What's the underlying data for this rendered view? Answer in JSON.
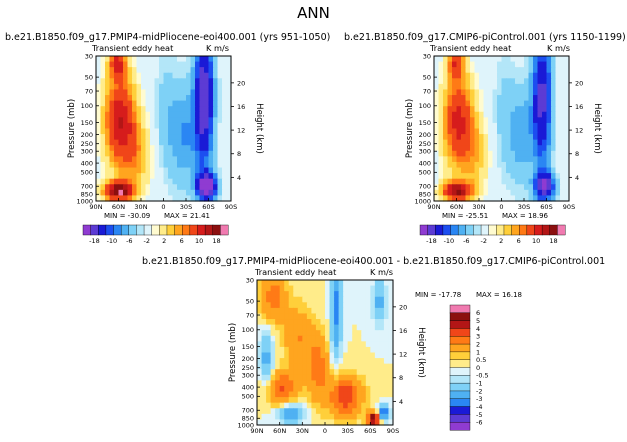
{
  "page_title": "ANN",
  "colors": {
    "ramp": [
      "#8f3bd1",
      "#5c3bd4",
      "#1a1ad6",
      "#1c4ef0",
      "#2a86f3",
      "#4fb1f2",
      "#7ed1f6",
      "#b3e6f8",
      "#dff4fb",
      "#fffbd0",
      "#ffec8a",
      "#ffcf3a",
      "#ffa51f",
      "#ff7a16",
      "#f04619",
      "#d61c1c",
      "#b31616",
      "#8b0f0f",
      "#f07ab0"
    ]
  },
  "chart_data": [
    {
      "type": "heatmap",
      "title": "b.e21.B1850.f09_g17.PMIP4-midPliocene-eoi400.001 (yrs 951-1050)",
      "subtitle_left": "Transient eddy heat",
      "units": "K m/s",
      "xlabel": "",
      "ylabel": "Pressure (mb)",
      "ylabel_right": "Height (km)",
      "x_ticks": [
        "90N",
        "60N",
        "30N",
        "0",
        "30S",
        "60S",
        "90S"
      ],
      "y_ticks": [
        "30",
        "50",
        "70",
        "100",
        "150",
        "200",
        "250",
        "300",
        "400",
        "500",
        "700",
        "850",
        "1000"
      ],
      "y_ticks_right": [
        "20",
        "16",
        "12",
        "8",
        "4"
      ],
      "stats": {
        "min_label": "MIN = -30.09",
        "max_label": "MAX = 21.41"
      },
      "colorbar": {
        "orientation": "horizontal",
        "labels": [
          "-18",
          "-10",
          "-6",
          "-2",
          "2",
          "6",
          "10",
          "18"
        ]
      }
    },
    {
      "type": "heatmap",
      "title": "b.e21.B1850.f09_g17.CMIP6-piControl.001 (yrs 1150-1199)",
      "subtitle_left": "Transient eddy heat",
      "units": "K m/s",
      "xlabel": "",
      "ylabel": "Pressure (mb)",
      "ylabel_right": "Height (km)",
      "x_ticks": [
        "90N",
        "60N",
        "30N",
        "0",
        "30S",
        "60S",
        "90S"
      ],
      "y_ticks": [
        "30",
        "50",
        "70",
        "100",
        "150",
        "200",
        "250",
        "300",
        "400",
        "500",
        "700",
        "850",
        "1000"
      ],
      "y_ticks_right": [
        "20",
        "16",
        "12",
        "8",
        "4"
      ],
      "stats": {
        "min_label": "MIN = -25.51",
        "max_label": "MAX = 18.96"
      },
      "colorbar": {
        "orientation": "horizontal",
        "labels": [
          "-18",
          "-10",
          "-6",
          "-2",
          "2",
          "6",
          "10",
          "18"
        ]
      }
    },
    {
      "type": "heatmap",
      "title": "b.e21.B1850.f09_g17.PMIP4-midPliocene-eoi400.001 - b.e21.B1850.f09_g17.CMIP6-piControl.001",
      "subtitle_left": "Transient eddy heat",
      "units": "K m/s",
      "xlabel": "",
      "ylabel": "Pressure (mb)",
      "ylabel_right": "Height (km)",
      "x_ticks": [
        "90N",
        "60N",
        "30N",
        "0",
        "30S",
        "60S",
        "90S"
      ],
      "y_ticks": [
        "30",
        "50",
        "70",
        "100",
        "150",
        "200",
        "250",
        "300",
        "400",
        "500",
        "700",
        "850",
        "1000"
      ],
      "y_ticks_right": [
        "20",
        "16",
        "12",
        "8",
        "4"
      ],
      "stats": {
        "min_label": "MIN = -17.78",
        "max_label": "MAX = 16.18"
      },
      "colorbar": {
        "orientation": "vertical",
        "labels": [
          "6",
          "5",
          "4",
          "3",
          "2",
          "1",
          "0.5",
          "0",
          "-0.5",
          "-1",
          "-2",
          "-3",
          "-4",
          "-5",
          "-6"
        ]
      }
    }
  ]
}
